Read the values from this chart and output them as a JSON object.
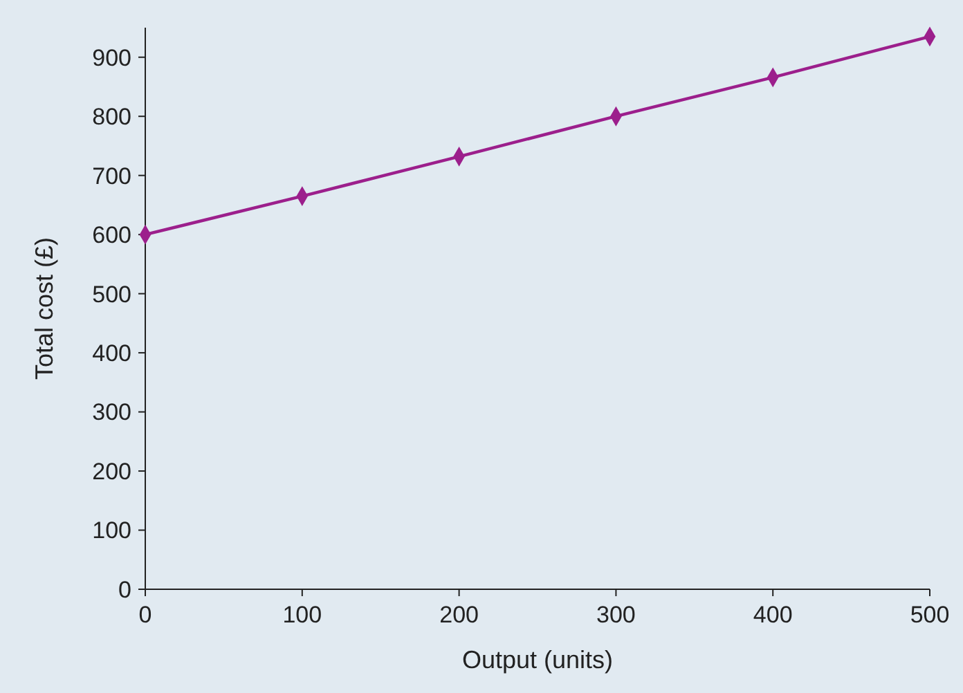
{
  "chart_data": {
    "type": "line",
    "xlabel": "Output (units)",
    "ylabel": "Total cost (£)",
    "x": [
      0,
      100,
      200,
      300,
      400,
      500
    ],
    "series": [
      {
        "color": "#9c1f8c",
        "values": [
          600,
          665,
          732,
          800,
          866,
          935
        ]
      }
    ],
    "xlim": [
      0,
      500
    ],
    "xticks": [
      0,
      100,
      200,
      300,
      400,
      500
    ],
    "ylim": [
      0,
      950
    ],
    "yticks": [
      0,
      100,
      200,
      300,
      400,
      500,
      600,
      700,
      800,
      900
    ],
    "marker": "diamond",
    "line_style": "solid"
  }
}
